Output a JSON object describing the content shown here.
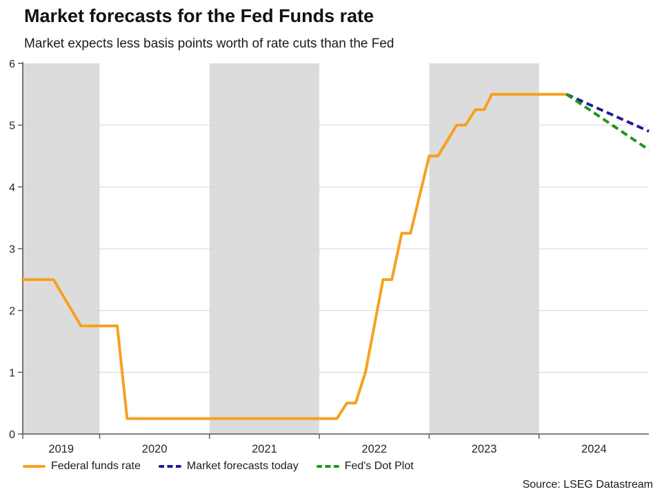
{
  "header": {
    "title": "Market forecasts for the Fed Funds rate",
    "subtitle": "Market expects less basis points worth of rate cuts than the Fed"
  },
  "source": "Source: LSEG Datastream",
  "colors": {
    "federal_funds_rate": "#F8A01D",
    "market_forecasts_today": "#1C1C96",
    "feds_dot_plot": "#1E951E",
    "year_band": "#DCDCDC",
    "gridline": "#D7D7D7",
    "axis": "#555555",
    "tick_text": "#262626"
  },
  "chart_data": {
    "type": "line",
    "title": "Market forecasts for the Fed Funds rate",
    "subtitle": "Market expects less basis points worth of rate cuts than the Fed",
    "xlabel": "",
    "ylabel": "",
    "x_domain": [
      2019.3,
      2025.0
    ],
    "ylim": [
      0,
      6
    ],
    "y_ticks": [
      0,
      1,
      2,
      3,
      4,
      5,
      6
    ],
    "grid_y": [
      1,
      2,
      3,
      4,
      5
    ],
    "x_tick_labels": [
      "2019",
      "2020",
      "2021",
      "2022",
      "2023",
      "2024"
    ],
    "x_year_boundaries": [
      2020,
      2021,
      2022,
      2023,
      2024
    ],
    "shaded_spans": [
      [
        2019.3,
        2020.0
      ],
      [
        2021.0,
        2022.0
      ],
      [
        2023.0,
        2024.0
      ]
    ],
    "grid": true,
    "legend_position": "bottom",
    "series": [
      {
        "name": "Federal funds rate",
        "style": "solid",
        "color": "#F8A01D",
        "points": [
          [
            2019.3,
            2.5
          ],
          [
            2019.58,
            2.5
          ],
          [
            2019.83,
            1.75
          ],
          [
            2020.16,
            1.75
          ],
          [
            2020.25,
            0.25
          ],
          [
            2022.16,
            0.25
          ],
          [
            2022.25,
            0.5
          ],
          [
            2022.33,
            0.5
          ],
          [
            2022.42,
            1.0
          ],
          [
            2022.58,
            2.5
          ],
          [
            2022.66,
            2.5
          ],
          [
            2022.75,
            3.25
          ],
          [
            2022.83,
            3.25
          ],
          [
            2023.0,
            4.5
          ],
          [
            2023.08,
            4.5
          ],
          [
            2023.25,
            5.0
          ],
          [
            2023.33,
            5.0
          ],
          [
            2023.42,
            5.25
          ],
          [
            2023.5,
            5.25
          ],
          [
            2023.57,
            5.5
          ],
          [
            2024.25,
            5.5
          ]
        ]
      },
      {
        "name": "Market forecasts today",
        "style": "dashed",
        "color": "#1C1C96",
        "points": [
          [
            2024.25,
            5.5
          ],
          [
            2025.0,
            4.9
          ]
        ]
      },
      {
        "name": "Fed's Dot Plot",
        "style": "dashed",
        "color": "#1E951E",
        "points": [
          [
            2024.25,
            5.5
          ],
          [
            2025.0,
            4.6
          ]
        ]
      }
    ]
  }
}
